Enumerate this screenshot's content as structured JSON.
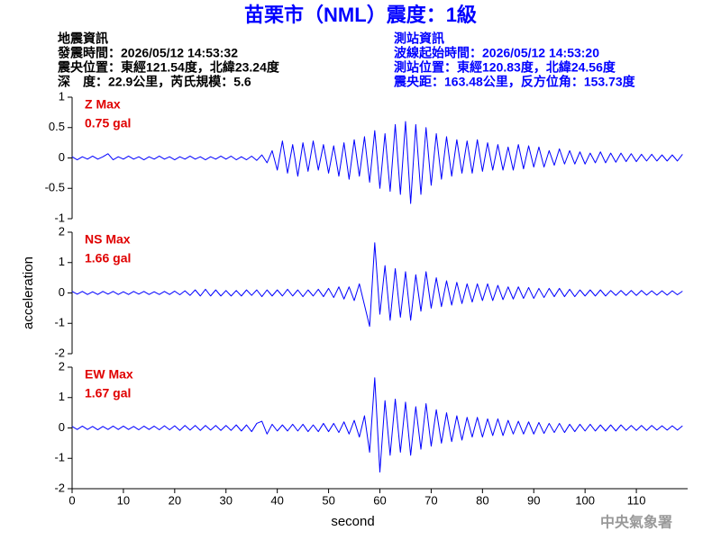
{
  "header": {
    "title": "苗栗市（NML）震度：1級",
    "left": [
      "地震資訊",
      "發震時間：2026/05/12 14:53:32",
      "震央位置：東經121.54度，北緯23.24度",
      "深　度：22.9公里，芮氏規模：5.6"
    ],
    "right": [
      "測站資訊",
      "波線起始時間：2026/05/12 14:53:20",
      "測站位置：東經120.83度，北緯24.56度",
      "震央距：163.48公里，反方位角：153.73度"
    ],
    "footer": "中央氣象署"
  },
  "chart_data": [
    {
      "type": "line",
      "label": "Z Max",
      "max_label": "0.75 gal",
      "label_color": "#e00000",
      "color": "#0000ff",
      "xlim": [
        0,
        120
      ],
      "ylim": [
        -1,
        1
      ],
      "yticks": [
        -1,
        -0.5,
        0,
        0.5,
        1
      ],
      "x": [
        0,
        1,
        2,
        3,
        4,
        5,
        6,
        7,
        8,
        9,
        10,
        11,
        12,
        13,
        14,
        15,
        16,
        17,
        18,
        19,
        20,
        21,
        22,
        23,
        24,
        25,
        26,
        27,
        28,
        29,
        30,
        31,
        32,
        33,
        34,
        35,
        36,
        37,
        38,
        39,
        40,
        41,
        42,
        43,
        44,
        45,
        46,
        47,
        48,
        49,
        50,
        51,
        52,
        53,
        54,
        55,
        56,
        57,
        58,
        59,
        60,
        61,
        62,
        63,
        64,
        65,
        66,
        67,
        68,
        69,
        70,
        71,
        72,
        73,
        74,
        75,
        76,
        77,
        78,
        79,
        80,
        81,
        82,
        83,
        84,
        85,
        86,
        87,
        88,
        89,
        90,
        91,
        92,
        93,
        94,
        95,
        96,
        97,
        98,
        99,
        100,
        101,
        102,
        103,
        104,
        105,
        106,
        107,
        108,
        109,
        110,
        111,
        112,
        113,
        114,
        115,
        116,
        117,
        118,
        119
      ],
      "values": [
        0.02,
        -0.03,
        0.02,
        -0.02,
        0.03,
        -0.02,
        0.02,
        0.07,
        -0.03,
        0.02,
        -0.02,
        0.03,
        -0.02,
        0.02,
        -0.03,
        0.02,
        -0.02,
        0.03,
        -0.02,
        0.02,
        -0.03,
        0.02,
        -0.02,
        0.03,
        -0.02,
        0.02,
        -0.03,
        0.02,
        -0.02,
        0.03,
        -0.02,
        0.03,
        -0.03,
        0.02,
        -0.03,
        0.03,
        -0.04,
        0.05,
        -0.08,
        0.12,
        -0.2,
        0.28,
        -0.25,
        0.22,
        -0.3,
        0.25,
        -0.22,
        0.28,
        -0.2,
        0.22,
        -0.25,
        0.2,
        -0.3,
        0.25,
        -0.35,
        0.3,
        -0.3,
        0.35,
        -0.4,
        0.45,
        -0.5,
        0.4,
        -0.55,
        0.55,
        -0.6,
        0.6,
        -0.75,
        0.55,
        -0.6,
        0.5,
        -0.45,
        0.4,
        -0.35,
        0.35,
        -0.3,
        0.3,
        -0.25,
        0.28,
        -0.25,
        0.3,
        -0.22,
        0.25,
        -0.2,
        0.22,
        -0.2,
        0.18,
        -0.2,
        0.22,
        -0.18,
        0.2,
        -0.15,
        0.18,
        -0.15,
        0.12,
        -0.12,
        0.15,
        -0.1,
        0.12,
        -0.1,
        0.1,
        -0.1,
        0.08,
        -0.08,
        0.1,
        -0.08,
        0.08,
        -0.07,
        0.08,
        -0.06,
        0.07,
        -0.06,
        0.06,
        -0.05,
        0.06,
        -0.05,
        0.05,
        -0.05,
        0.05,
        -0.05,
        0.06
      ]
    },
    {
      "type": "line",
      "label": "NS Max",
      "max_label": "1.66 gal",
      "label_color": "#e00000",
      "color": "#0000ff",
      "ylabel": "acceleration",
      "xlim": [
        0,
        120
      ],
      "ylim": [
        -2,
        2
      ],
      "yticks": [
        -2,
        -1,
        0,
        1,
        2
      ],
      "x": [
        0,
        1,
        2,
        3,
        4,
        5,
        6,
        7,
        8,
        9,
        10,
        11,
        12,
        13,
        14,
        15,
        16,
        17,
        18,
        19,
        20,
        21,
        22,
        23,
        24,
        25,
        26,
        27,
        28,
        29,
        30,
        31,
        32,
        33,
        34,
        35,
        36,
        37,
        38,
        39,
        40,
        41,
        42,
        43,
        44,
        45,
        46,
        47,
        48,
        49,
        50,
        51,
        52,
        53,
        54,
        55,
        56,
        57,
        58,
        59,
        60,
        61,
        62,
        63,
        64,
        65,
        66,
        67,
        68,
        69,
        70,
        71,
        72,
        73,
        74,
        75,
        76,
        77,
        78,
        79,
        80,
        81,
        82,
        83,
        84,
        85,
        86,
        87,
        88,
        89,
        90,
        91,
        92,
        93,
        94,
        95,
        96,
        97,
        98,
        99,
        100,
        101,
        102,
        103,
        104,
        105,
        106,
        107,
        108,
        109,
        110,
        111,
        112,
        113,
        114,
        115,
        116,
        117,
        118,
        119
      ],
      "values": [
        0.05,
        -0.04,
        0.05,
        -0.05,
        0.04,
        -0.05,
        0.05,
        -0.04,
        0.05,
        -0.05,
        0.04,
        -0.05,
        0.05,
        -0.04,
        0.05,
        -0.05,
        0.04,
        -0.05,
        0.05,
        -0.05,
        0.06,
        -0.06,
        0.07,
        -0.08,
        0.1,
        -0.1,
        0.12,
        -0.1,
        0.1,
        -0.1,
        0.08,
        -0.1,
        0.08,
        -0.1,
        0.1,
        -0.08,
        0.1,
        -0.12,
        0.1,
        -0.1,
        0.1,
        -0.1,
        0.12,
        -0.1,
        0.1,
        -0.12,
        0.1,
        -0.1,
        0.12,
        -0.12,
        0.15,
        -0.15,
        0.2,
        -0.2,
        0.2,
        -0.25,
        0.3,
        -0.4,
        -1.1,
        1.65,
        -0.7,
        0.9,
        -0.9,
        0.8,
        -0.8,
        0.7,
        -0.9,
        0.6,
        -0.6,
        0.7,
        -0.5,
        0.5,
        -0.45,
        0.4,
        -0.4,
        0.35,
        -0.35,
        0.3,
        -0.3,
        0.3,
        -0.25,
        0.3,
        -0.25,
        0.25,
        -0.22,
        0.2,
        -0.2,
        0.2,
        -0.18,
        0.18,
        -0.18,
        0.15,
        -0.15,
        0.15,
        -0.12,
        0.15,
        -0.12,
        0.12,
        -0.12,
        0.1,
        -0.1,
        0.1,
        -0.1,
        0.1,
        -0.1,
        0.08,
        -0.08,
        0.08,
        -0.08,
        0.08,
        -0.08,
        0.08,
        -0.07,
        0.07,
        -0.07,
        0.07,
        -0.07,
        0.07,
        -0.06,
        0.06
      ]
    },
    {
      "type": "line",
      "label": "EW Max",
      "max_label": "1.67 gal",
      "label_color": "#e00000",
      "color": "#0000ff",
      "xlabel": "second",
      "xlim": [
        0,
        120
      ],
      "xticks": [
        0,
        10,
        20,
        30,
        40,
        50,
        60,
        70,
        80,
        90,
        100,
        110
      ],
      "ylim": [
        -2,
        2
      ],
      "yticks": [
        -2,
        -1,
        0,
        1,
        2
      ],
      "x": [
        0,
        1,
        2,
        3,
        4,
        5,
        6,
        7,
        8,
        9,
        10,
        11,
        12,
        13,
        14,
        15,
        16,
        17,
        18,
        19,
        20,
        21,
        22,
        23,
        24,
        25,
        26,
        27,
        28,
        29,
        30,
        31,
        32,
        33,
        34,
        35,
        36,
        37,
        38,
        39,
        40,
        41,
        42,
        43,
        44,
        45,
        46,
        47,
        48,
        49,
        50,
        51,
        52,
        53,
        54,
        55,
        56,
        57,
        58,
        59,
        60,
        61,
        62,
        63,
        64,
        65,
        66,
        67,
        68,
        69,
        70,
        71,
        72,
        73,
        74,
        75,
        76,
        77,
        78,
        79,
        80,
        81,
        82,
        83,
        84,
        85,
        86,
        87,
        88,
        89,
        90,
        91,
        92,
        93,
        94,
        95,
        96,
        97,
        98,
        99,
        100,
        101,
        102,
        103,
        104,
        105,
        106,
        107,
        108,
        109,
        110,
        111,
        112,
        113,
        114,
        115,
        116,
        117,
        118,
        119
      ],
      "values": [
        0.05,
        -0.05,
        0.06,
        -0.05,
        0.05,
        -0.06,
        0.05,
        -0.05,
        0.06,
        -0.05,
        0.06,
        -0.05,
        0.05,
        -0.06,
        0.06,
        -0.05,
        0.06,
        -0.06,
        0.07,
        -0.06,
        0.07,
        -0.08,
        0.08,
        -0.07,
        0.08,
        -0.08,
        0.08,
        -0.07,
        0.08,
        -0.08,
        0.08,
        -0.08,
        0.1,
        -0.1,
        0.1,
        -0.12,
        0.15,
        0.22,
        -0.2,
        0.12,
        -0.1,
        0.1,
        -0.1,
        0.12,
        -0.1,
        0.12,
        -0.12,
        0.1,
        -0.12,
        0.15,
        -0.12,
        0.15,
        -0.15,
        0.2,
        -0.2,
        0.25,
        -0.3,
        0.4,
        -0.8,
        1.65,
        -1.45,
        0.9,
        -0.9,
        0.95,
        -0.8,
        0.85,
        -0.9,
        0.7,
        -0.7,
        0.8,
        -0.6,
        0.6,
        -0.5,
        0.5,
        -0.45,
        0.4,
        -0.4,
        0.35,
        -0.3,
        0.35,
        -0.3,
        0.3,
        -0.25,
        0.3,
        -0.25,
        0.25,
        -0.2,
        0.22,
        -0.2,
        0.2,
        -0.2,
        0.18,
        -0.18,
        0.15,
        -0.15,
        0.15,
        -0.15,
        0.12,
        -0.12,
        0.12,
        -0.1,
        0.12,
        -0.1,
        0.1,
        -0.1,
        0.1,
        -0.1,
        0.1,
        -0.08,
        0.08,
        -0.08,
        0.08,
        -0.08,
        0.08,
        -0.07,
        0.07,
        -0.07,
        0.07,
        -0.07,
        0.07
      ]
    }
  ]
}
